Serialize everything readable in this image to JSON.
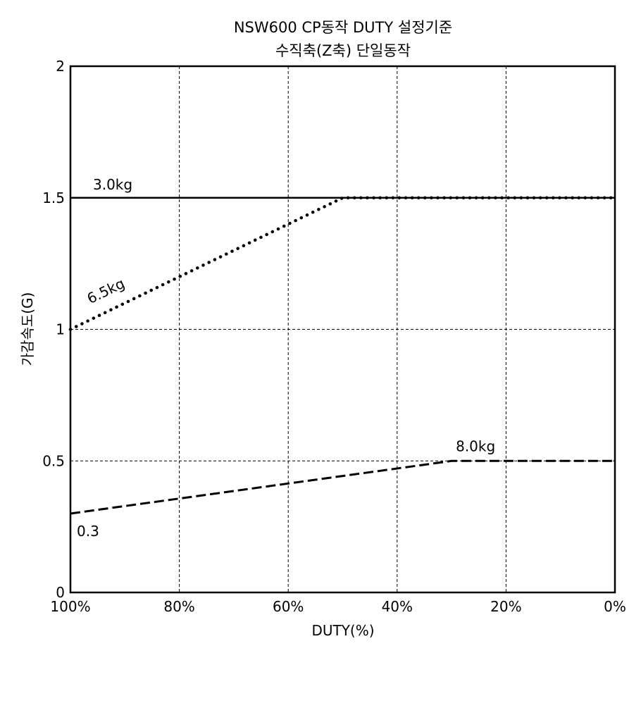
{
  "chart_data": {
    "type": "line",
    "title": "NSW600 CP동작 DUTY 설정기준",
    "subtitle": "수직축(Z축) 단일동작",
    "xlabel": "DUTY(%)",
    "ylabel": "가감속도(G)",
    "x_reversed": true,
    "xlim": [
      100,
      0
    ],
    "ylim": [
      0,
      2
    ],
    "grid": true,
    "x_ticks": [
      100,
      80,
      60,
      40,
      20,
      0
    ],
    "x_tick_labels": [
      "100%",
      "80%",
      "60%",
      "40%",
      "20%",
      "0%"
    ],
    "y_ticks": [
      0,
      0.5,
      1,
      1.5,
      2
    ],
    "y_tick_labels": [
      "0",
      "0.5",
      "1",
      "1.5",
      "2"
    ],
    "series": [
      {
        "name": "3.0kg",
        "style": "solid",
        "points": [
          [
            100,
            1.5
          ],
          [
            0,
            1.5
          ]
        ]
      },
      {
        "name": "6.5kg",
        "style": "dotted",
        "points": [
          [
            100,
            1.0
          ],
          [
            50,
            1.5
          ],
          [
            0,
            1.5
          ]
        ]
      },
      {
        "name": "8.0kg",
        "style": "dashed",
        "points": [
          [
            100,
            0.3
          ],
          [
            30,
            0.5
          ],
          [
            0,
            0.5
          ]
        ]
      }
    ],
    "annotations": [
      {
        "text": "0.3",
        "x": 100,
        "y": 0.3
      }
    ],
    "colors": {
      "line": "#000000",
      "grid": "#000000",
      "background": "#ffffff"
    }
  }
}
